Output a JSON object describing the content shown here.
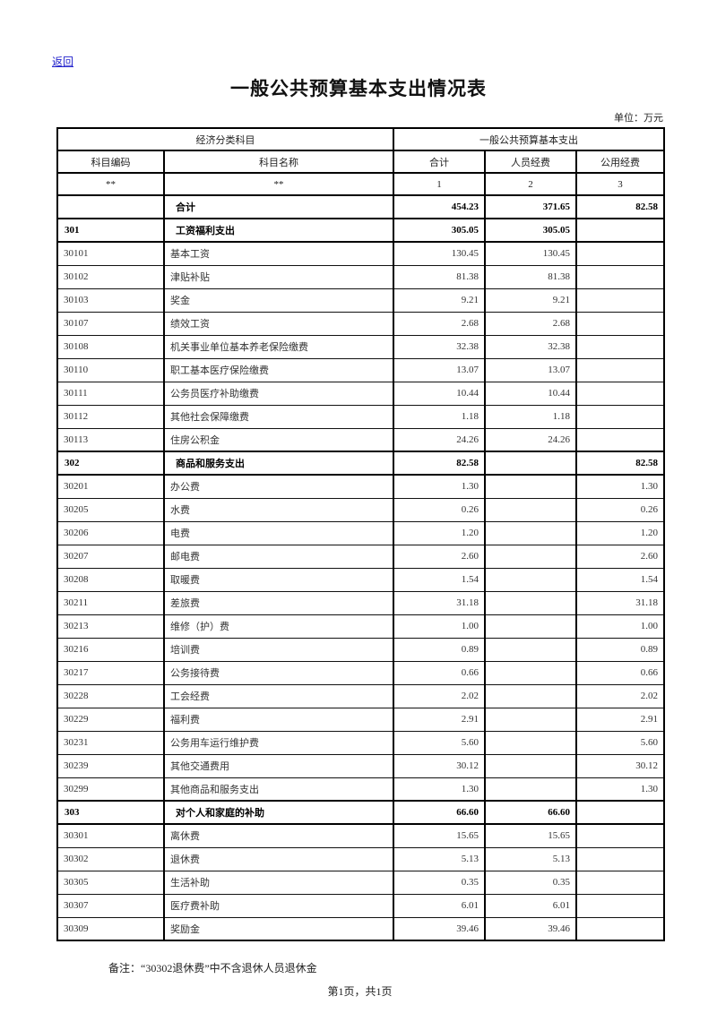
{
  "back_link": {
    "label": "返回"
  },
  "title": "一般公共预算基本支出情况表",
  "unit_label": "单位：万元",
  "colors": {
    "link": "#2222cc",
    "border": "#000000",
    "text": "#333333"
  },
  "table": {
    "header": {
      "group_left": "经济分类科目",
      "group_right": "一般公共预算基本支出",
      "columns": [
        "科目编码",
        "科目名称",
        "合计",
        "人员经费",
        "公用经费"
      ],
      "numbering": [
        "**",
        "**",
        "1",
        "2",
        "3"
      ]
    },
    "rows": [
      {
        "code": "",
        "name": "合计",
        "total": "454.23",
        "personnel": "371.65",
        "public": "82.58",
        "bold": true
      },
      {
        "code": "301",
        "name": "工资福利支出",
        "total": "305.05",
        "personnel": "305.05",
        "public": "",
        "bold": true
      },
      {
        "code": "30101",
        "name": "基本工资",
        "total": "130.45",
        "personnel": "130.45",
        "public": "",
        "bold": false
      },
      {
        "code": "30102",
        "name": "津贴补贴",
        "total": "81.38",
        "personnel": "81.38",
        "public": "",
        "bold": false
      },
      {
        "code": "30103",
        "name": "奖金",
        "total": "9.21",
        "personnel": "9.21",
        "public": "",
        "bold": false
      },
      {
        "code": "30107",
        "name": "绩效工资",
        "total": "2.68",
        "personnel": "2.68",
        "public": "",
        "bold": false
      },
      {
        "code": "30108",
        "name": "机关事业单位基本养老保险缴费",
        "total": "32.38",
        "personnel": "32.38",
        "public": "",
        "bold": false
      },
      {
        "code": "30110",
        "name": "职工基本医疗保险缴费",
        "total": "13.07",
        "personnel": "13.07",
        "public": "",
        "bold": false
      },
      {
        "code": "30111",
        "name": "公务员医疗补助缴费",
        "total": "10.44",
        "personnel": "10.44",
        "public": "",
        "bold": false
      },
      {
        "code": "30112",
        "name": "其他社会保障缴费",
        "total": "1.18",
        "personnel": "1.18",
        "public": "",
        "bold": false
      },
      {
        "code": "30113",
        "name": "住房公积金",
        "total": "24.26",
        "personnel": "24.26",
        "public": "",
        "bold": false
      },
      {
        "code": "302",
        "name": "商品和服务支出",
        "total": "82.58",
        "personnel": "",
        "public": "82.58",
        "bold": true
      },
      {
        "code": "30201",
        "name": "办公费",
        "total": "1.30",
        "personnel": "",
        "public": "1.30",
        "bold": false
      },
      {
        "code": "30205",
        "name": "水费",
        "total": "0.26",
        "personnel": "",
        "public": "0.26",
        "bold": false
      },
      {
        "code": "30206",
        "name": "电费",
        "total": "1.20",
        "personnel": "",
        "public": "1.20",
        "bold": false
      },
      {
        "code": "30207",
        "name": "邮电费",
        "total": "2.60",
        "personnel": "",
        "public": "2.60",
        "bold": false
      },
      {
        "code": "30208",
        "name": "取暖费",
        "total": "1.54",
        "personnel": "",
        "public": "1.54",
        "bold": false
      },
      {
        "code": "30211",
        "name": "差旅费",
        "total": "31.18",
        "personnel": "",
        "public": "31.18",
        "bold": false
      },
      {
        "code": "30213",
        "name": "维修（护）费",
        "total": "1.00",
        "personnel": "",
        "public": "1.00",
        "bold": false
      },
      {
        "code": "30216",
        "name": "培训费",
        "total": "0.89",
        "personnel": "",
        "public": "0.89",
        "bold": false
      },
      {
        "code": "30217",
        "name": "公务接待费",
        "total": "0.66",
        "personnel": "",
        "public": "0.66",
        "bold": false
      },
      {
        "code": "30228",
        "name": "工会经费",
        "total": "2.02",
        "personnel": "",
        "public": "2.02",
        "bold": false
      },
      {
        "code": "30229",
        "name": "福利费",
        "total": "2.91",
        "personnel": "",
        "public": "2.91",
        "bold": false
      },
      {
        "code": "30231",
        "name": "公务用车运行维护费",
        "total": "5.60",
        "personnel": "",
        "public": "5.60",
        "bold": false
      },
      {
        "code": "30239",
        "name": "其他交通费用",
        "total": "30.12",
        "personnel": "",
        "public": "30.12",
        "bold": false
      },
      {
        "code": "30299",
        "name": "其他商品和服务支出",
        "total": "1.30",
        "personnel": "",
        "public": "1.30",
        "bold": false
      },
      {
        "code": "303",
        "name": "对个人和家庭的补助",
        "total": "66.60",
        "personnel": "66.60",
        "public": "",
        "bold": true
      },
      {
        "code": "30301",
        "name": "离休费",
        "total": "15.65",
        "personnel": "15.65",
        "public": "",
        "bold": false
      },
      {
        "code": "30302",
        "name": "退休费",
        "total": "5.13",
        "personnel": "5.13",
        "public": "",
        "bold": false
      },
      {
        "code": "30305",
        "name": "生活补助",
        "total": "0.35",
        "personnel": "0.35",
        "public": "",
        "bold": false
      },
      {
        "code": "30307",
        "name": "医疗费补助",
        "total": "6.01",
        "personnel": "6.01",
        "public": "",
        "bold": false
      },
      {
        "code": "30309",
        "name": "奖励金",
        "total": "39.46",
        "personnel": "39.46",
        "public": "",
        "bold": false
      }
    ]
  },
  "note": "备注：“30302退休费”中不含退休人员退休金",
  "pagination": "第1页，共1页"
}
